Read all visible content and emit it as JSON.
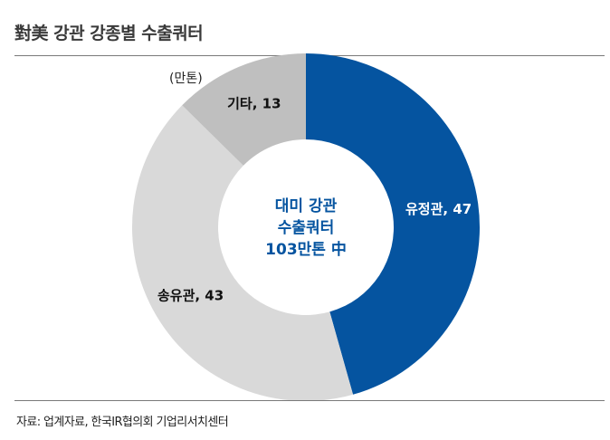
{
  "title": "對美 강관 강종별 수출쿼터",
  "unit": "(만톤)",
  "source": "자료: 업계자료, 한국IR협의회 기업리서치센터",
  "colors": {
    "accent": "#0554A0",
    "light_gray": "#D9D9D9",
    "mid_gray": "#BFBFBF",
    "center_text": "#0554A0"
  },
  "chart_data": {
    "type": "pie",
    "subtype": "donut",
    "title": "對美 강관 강종별 수출쿼터",
    "unit": "(만톤)",
    "center_text": [
      "대미 강관",
      "수출쿼터",
      "103만톤 中"
    ],
    "categories": [
      "유정관",
      "송유관",
      "기타"
    ],
    "values": [
      47,
      43,
      13
    ],
    "labels": [
      "유정관, 47",
      "송유관, 43",
      "기타, 13"
    ],
    "colors": [
      "#0554A0",
      "#D9D9D9",
      "#BFBFBF"
    ],
    "label_colors": [
      "#FFFFFF",
      "#111111",
      "#111111"
    ],
    "total": 103,
    "start": "12 o'clock",
    "direction": "clockwise"
  }
}
